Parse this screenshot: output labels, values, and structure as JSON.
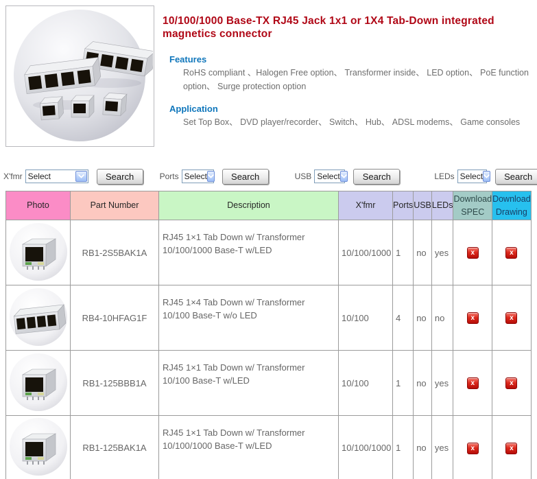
{
  "intro": {
    "title": "10/100/1000 Base-TX  RJ45 Jack 1x1 or 1X4 Tab-Down  integrated magnetics connector",
    "features_heading": "Features",
    "features_text": "RoHS compliant 、Halogen Free option、 Transformer inside、 LED option、 PoE function option、 Surge protection option",
    "application_heading": "Application",
    "application_text": "Set Top Box、 DVD player/recorder、 Switch、 Hub、 ADSL modems、 Game consoles"
  },
  "search_bar": {
    "groups": [
      {
        "key": "xfmr",
        "label": "X'fmr",
        "select_value": "Select",
        "button_label": "Search"
      },
      {
        "key": "ports",
        "label": "Ports",
        "select_value": "Select",
        "button_label": "Search"
      },
      {
        "key": "usb",
        "label": "USB",
        "select_value": "Select",
        "button_label": "Search"
      },
      {
        "key": "leds",
        "label": "LEDs",
        "select_value": "Select",
        "button_label": "Search"
      }
    ]
  },
  "table": {
    "columns": [
      {
        "key": "photo",
        "label": "Photo",
        "color": "#fb8cc6",
        "text_color": "#262626"
      },
      {
        "key": "part",
        "label": "Part Number",
        "color": "#fcc8c0",
        "text_color": "#262626"
      },
      {
        "key": "desc",
        "label": "Description",
        "color": "#c9f6c5",
        "text_color": "#262626"
      },
      {
        "key": "xfmr",
        "label": "X'fmr",
        "color": "#cbcbee",
        "text_color": "#262626"
      },
      {
        "key": "ports",
        "label": "Ports",
        "color": "#cbcbee",
        "text_color": "#262626"
      },
      {
        "key": "usb",
        "label": "USB",
        "color": "#cbcbee",
        "text_color": "#262626"
      },
      {
        "key": "leds",
        "label": "LEDs",
        "color": "#cbcbee",
        "text_color": "#262626"
      },
      {
        "key": "spec",
        "label": "Download SPEC",
        "color": "#a3cbc6",
        "text_color": "#2e4a4a"
      },
      {
        "key": "drawing",
        "label": "Download Drawing",
        "color": "#27c0ee",
        "text_color": "#173f66"
      }
    ],
    "rows": [
      {
        "photo": "rj45-1x1",
        "part_number": "RB1-2S5BAK1A",
        "description": "RJ45 1×1 Tab Down w/ Transformer 10/100/1000 Base-T w/LED",
        "xfmr": "10/100/1000",
        "ports": "1",
        "usb": "no",
        "leds": "yes"
      },
      {
        "photo": "rj45-1x4",
        "part_number": "RB4-10HFAG1F",
        "description": "RJ45 1×4 Tab Down w/ Transformer 10/100 Base-T w/o LED",
        "xfmr": "10/100",
        "ports": "4",
        "usb": "no",
        "leds": "no"
      },
      {
        "photo": "rj45-1x1",
        "part_number": "RB1-125BBB1A",
        "description": "RJ45 1×1 Tab Down w/ Transformer 10/100 Base-T w/LED",
        "xfmr": "10/100",
        "ports": "1",
        "usb": "no",
        "leds": "yes"
      },
      {
        "photo": "rj45-1x1",
        "part_number": "RB1-125BAK1A",
        "description": "RJ45 1×1 Tab Down w/ Transformer 10/100/1000 Base-T w/LED",
        "xfmr": "10/100/1000",
        "ports": "1",
        "usb": "no",
        "leds": "yes"
      }
    ],
    "download_icon_glyph": "x"
  },
  "colors": {
    "title_red": "#b00716",
    "section_heading_blue": "#0f76bb",
    "body_gray": "#6e6e6e",
    "table_border": "#9b9b9b",
    "download_icon_red": "#d51e17"
  }
}
